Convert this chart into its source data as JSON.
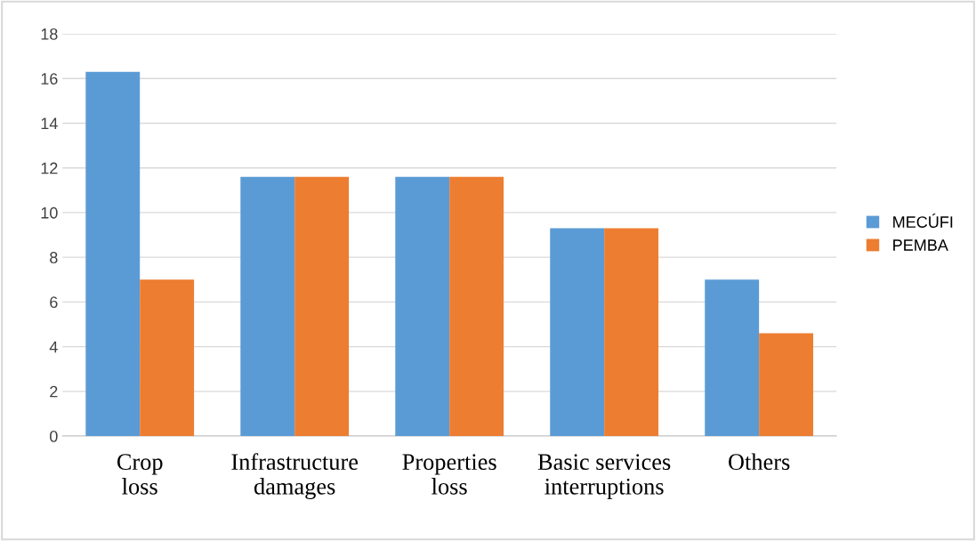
{
  "chart_data": {
    "type": "bar",
    "categories": [
      "Crop\nloss",
      "Infrastructure\ndamages",
      "Properties\nloss",
      "Basic services\ninterruptions",
      "Others"
    ],
    "series": [
      {
        "name": "MECÚFI",
        "color": "#5b9bd5",
        "values": [
          16.3,
          11.6,
          11.6,
          9.3,
          7.0
        ]
      },
      {
        "name": "PEMBA",
        "color": "#ed7d31",
        "values": [
          7.0,
          11.6,
          11.6,
          9.3,
          4.6
        ]
      }
    ],
    "ylim": [
      0,
      18
    ],
    "yticks": [
      0,
      2,
      4,
      6,
      8,
      10,
      12,
      14,
      16,
      18
    ],
    "grid": "y",
    "legend": "right"
  }
}
